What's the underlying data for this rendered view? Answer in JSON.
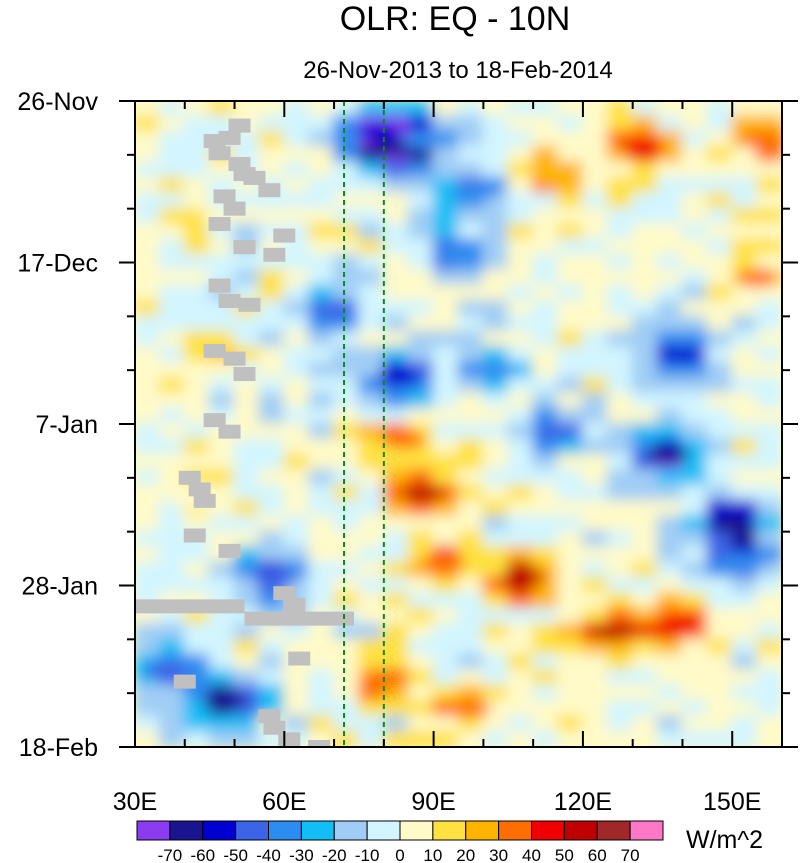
{
  "chart_data": {
    "type": "heatmap",
    "title": "OLR: EQ - 10N",
    "subtitle": "26-Nov-2013 to 18-Feb-2014",
    "units": "W/m^2",
    "x_axis": {
      "lim": [
        30,
        160
      ],
      "ticks": [
        {
          "value": 30,
          "label": "30E"
        },
        {
          "value": 60,
          "label": "60E"
        },
        {
          "value": 90,
          "label": "90E"
        },
        {
          "value": 120,
          "label": "120E"
        },
        {
          "value": 150,
          "label": "150E"
        }
      ],
      "minor_step": 10
    },
    "y_axis": {
      "lim_days": [
        0,
        84
      ],
      "ticks": [
        {
          "day": 0,
          "label": "26-Nov"
        },
        {
          "day": 21,
          "label": "17-Dec"
        },
        {
          "day": 42,
          "label": "7-Jan"
        },
        {
          "day": 63,
          "label": "28-Jan"
        },
        {
          "day": 84,
          "label": "18-Feb"
        }
      ],
      "minor_step_days": 7
    },
    "reference_lines_lon": [
      72,
      80
    ],
    "colorbar": {
      "levels": [
        "-70",
        "-60",
        "-50",
        "-40",
        "-30",
        "-20",
        "-10",
        "0",
        "10",
        "20",
        "30",
        "40",
        "50",
        "60",
        "70"
      ],
      "colors": [
        "#8c3cf0",
        "#1a1490",
        "#0000d2",
        "#3c64e6",
        "#2d8cf0",
        "#12bef5",
        "#a0cdf5",
        "#d2f5ff",
        "#fffac8",
        "#ffe141",
        "#ffb400",
        "#ff6e00",
        "#f00000",
        "#c00000",
        "#a02828",
        "#ff78c8"
      ]
    },
    "missing_color": "#c0c0c0",
    "anomaly_features": [
      {
        "lon": 82,
        "day": 6,
        "value": -70
      },
      {
        "lon": 79,
        "day": 4,
        "value": -60
      },
      {
        "lon": 88,
        "day": 5,
        "value": -40
      },
      {
        "lon": 98,
        "day": 12,
        "value": -40
      },
      {
        "lon": 94,
        "day": 20,
        "value": -40
      },
      {
        "lon": 70,
        "day": 27,
        "value": -50
      },
      {
        "lon": 83,
        "day": 36,
        "value": -55
      },
      {
        "lon": 102,
        "day": 35,
        "value": -40
      },
      {
        "lon": 140,
        "day": 33,
        "value": -60
      },
      {
        "lon": 137,
        "day": 46,
        "value": -70
      },
      {
        "lon": 115,
        "day": 43,
        "value": -45
      },
      {
        "lon": 150,
        "day": 55,
        "value": -65
      },
      {
        "lon": 152,
        "day": 60,
        "value": -40
      },
      {
        "lon": 58,
        "day": 62,
        "value": -50
      },
      {
        "lon": 48,
        "day": 78,
        "value": -70
      },
      {
        "lon": 36,
        "day": 74,
        "value": -45
      },
      {
        "lon": 156,
        "day": 5,
        "value": 35
      },
      {
        "lon": 132,
        "day": 6,
        "value": 40
      },
      {
        "lon": 115,
        "day": 10,
        "value": 25
      },
      {
        "lon": 108,
        "day": 62,
        "value": 50
      },
      {
        "lon": 126,
        "day": 69,
        "value": 55
      },
      {
        "lon": 140,
        "day": 68,
        "value": 40
      },
      {
        "lon": 92,
        "day": 60,
        "value": 35
      },
      {
        "lon": 88,
        "day": 51,
        "value": 50
      },
      {
        "lon": 84,
        "day": 44,
        "value": 30
      },
      {
        "lon": 155,
        "day": 23,
        "value": 30
      },
      {
        "lon": 80,
        "day": 75,
        "value": 35
      },
      {
        "lon": 97,
        "day": 79,
        "value": 30
      },
      {
        "lon": 45,
        "day": 32,
        "value": 15
      },
      {
        "lon": 42,
        "day": 52,
        "value": 8
      },
      {
        "lon": 40,
        "day": 15,
        "value": 12
      }
    ]
  }
}
